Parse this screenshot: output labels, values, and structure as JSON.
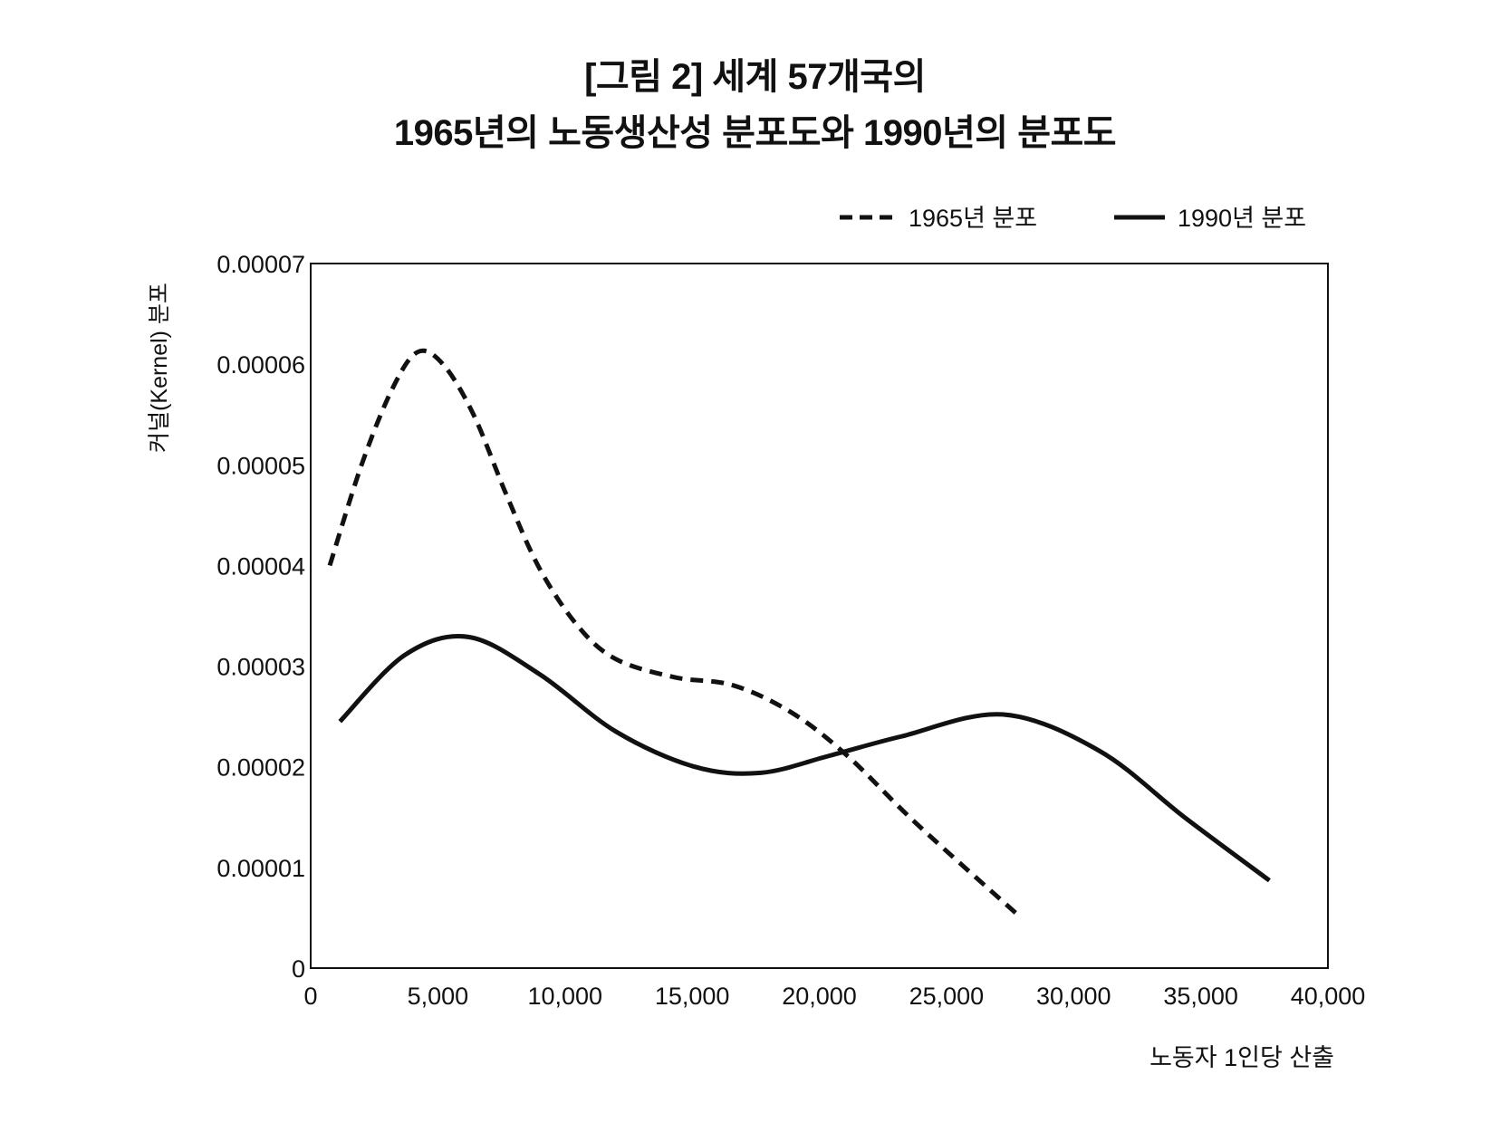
{
  "chart_data": {
    "type": "line",
    "title": [
      "[그림 2] 세계 57개국의",
      "1965년의 노동생산성 분포도와 1990년의 분포도"
    ],
    "xlabel": "노동자 1인당 산출",
    "ylabel": "커널(Kernel) 분포",
    "xlim": [
      0,
      40000
    ],
    "ylim": [
      0,
      7e-05
    ],
    "xticks": [
      0,
      5000,
      10000,
      15000,
      20000,
      25000,
      30000,
      35000,
      40000
    ],
    "xtick_labels": [
      "0",
      "5,000",
      "10,000",
      "15,000",
      "20,000",
      "25,000",
      "30,000",
      "35,000",
      "40,000"
    ],
    "yticks": [
      0,
      1e-05,
      2e-05,
      3e-05,
      4e-05,
      5e-05,
      6e-05,
      7e-05
    ],
    "ytick_labels": [
      "0",
      "0.00001",
      "0.00002",
      "0.00003",
      "0.00004",
      "0.00005",
      "0.00006",
      "0.00007"
    ],
    "grid": false,
    "legend_position": "top-right",
    "series": [
      {
        "name": "1965년 분포",
        "style": "dashed",
        "color": "#111111",
        "x": [
          750,
          2000,
          3200,
          4200,
          5200,
          6400,
          7700,
          9000,
          10500,
          12000,
          14300,
          16600,
          18900,
          21100,
          23800,
          27800
        ],
        "y": [
          4e-05,
          5e-05,
          5.75e-05,
          6.12e-05,
          6e-05,
          5.5e-05,
          4.7e-05,
          3.97e-05,
          3.4e-05,
          3.07e-05,
          2.89e-05,
          2.81e-05,
          2.54e-05,
          2.11e-05,
          1.44e-05,
          5.3e-06
        ]
      },
      {
        "name": "1990년 분포",
        "style": "solid",
        "color": "#111111",
        "x": [
          1150,
          3700,
          6200,
          9000,
          12000,
          15100,
          17700,
          20400,
          23200,
          27200,
          31000,
          34400,
          37700
        ],
        "y": [
          2.45e-05,
          3.11e-05,
          3.29e-05,
          2.92e-05,
          2.35e-05,
          2e-05,
          1.94e-05,
          2.11e-05,
          2.3e-05,
          2.52e-05,
          2.16e-05,
          1.49e-05,
          8.7e-06
        ]
      }
    ]
  }
}
